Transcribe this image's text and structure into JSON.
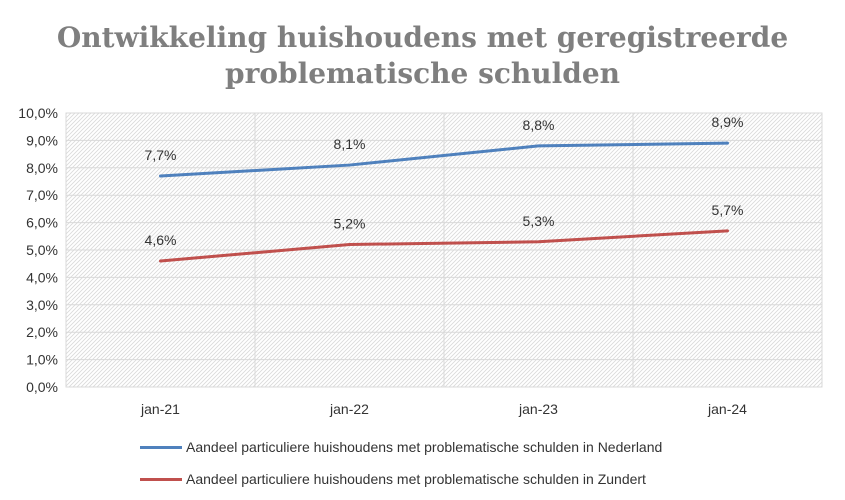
{
  "chart_data": {
    "type": "line",
    "title": "Ontwikkeling huishoudens met geregistreerde problematische schulden",
    "title_lines": [
      "Ontwikkeling huishoudens met geregistreerde",
      "problematische schulden"
    ],
    "categories": [
      "jan-21",
      "jan-22",
      "jan-23",
      "jan-24"
    ],
    "yticks": [
      "0,0%",
      "1,0%",
      "2,0%",
      "3,0%",
      "4,0%",
      "5,0%",
      "6,0%",
      "7,0%",
      "8,0%",
      "9,0%",
      "10,0%"
    ],
    "ylim": [
      0,
      10
    ],
    "grid": true,
    "legend_position": "bottom",
    "series": [
      {
        "name": "Aandeel particuliere huishoudens met problematische schulden in Nederland",
        "values": [
          7.7,
          8.1,
          8.8,
          8.9
        ],
        "labels": [
          "7,7%",
          "8,1%",
          "8,8%",
          "8,9%"
        ],
        "color": "#4f81bd"
      },
      {
        "name": "Aandeel particuliere huishoudens met problematische schulden in Zundert",
        "values": [
          4.6,
          5.2,
          5.3,
          5.7
        ],
        "labels": [
          "4,6%",
          "5,2%",
          "5,3%",
          "5,7%"
        ],
        "color": "#c0504d"
      }
    ]
  }
}
